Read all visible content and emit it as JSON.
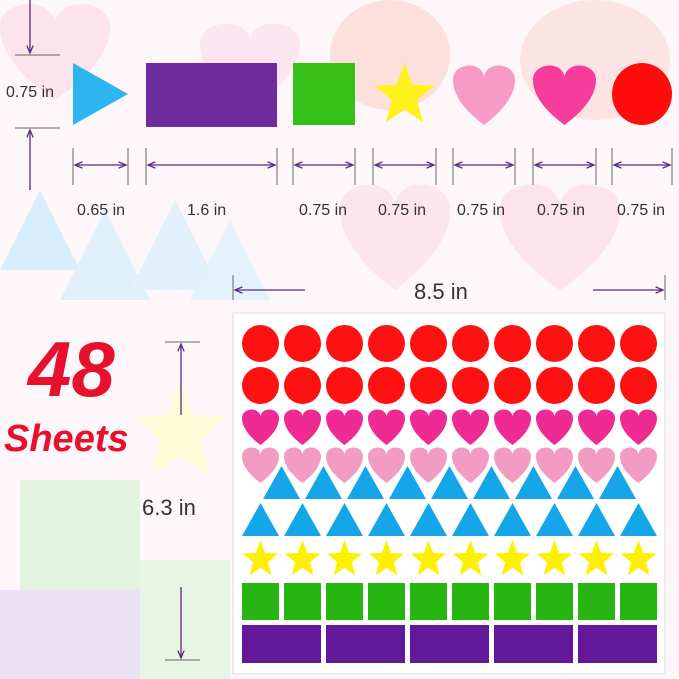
{
  "colors": {
    "red": "#ff1111",
    "hot_pink": "#ef2a92",
    "light_pink": "#f39cc3",
    "blue": "#14a6e8",
    "yellow": "#fff000",
    "green": "#27b511",
    "purple": "#63189a",
    "accent_text": "#e8112d",
    "arrow": "#5a2a80"
  },
  "samples": [
    {
      "shape": "triangle",
      "color": "#2cb5ef",
      "width_label": "0.65 in"
    },
    {
      "shape": "rectangle",
      "color": "#6e2c9c",
      "width_label": "1.6 in"
    },
    {
      "shape": "square",
      "color": "#36c018",
      "width_label": "0.75 in"
    },
    {
      "shape": "star",
      "color": "#fff21a",
      "width_label": "0.75 in"
    },
    {
      "shape": "heart",
      "color": "#f79ac6",
      "width_label": "0.75 in"
    },
    {
      "shape": "heart",
      "color": "#f73d9b",
      "width_label": "0.75 in"
    },
    {
      "shape": "circle",
      "color": "#ff0d0d",
      "width_label": "0.75 in"
    }
  ],
  "height_label": "0.75 in",
  "sheet_width_label": "8.5 in",
  "sheet_height_label": "6.3 in",
  "sheet_count": "48",
  "sheet_word": "Sheets",
  "sheet_rows": [
    {
      "shape": "circle",
      "color": "#ff1111",
      "count": 10
    },
    {
      "shape": "circle",
      "color": "#ff1111",
      "count": 10
    },
    {
      "shape": "heart",
      "color": "#ef2a92",
      "count": 10
    },
    {
      "shape": "heart",
      "color": "#f39cc3",
      "count": 10
    },
    {
      "shape": "triangle",
      "color": "#14a6e8",
      "count": 9
    },
    {
      "shape": "triangle",
      "color": "#14a6e8",
      "count": 10
    },
    {
      "shape": "star",
      "color": "#fff000",
      "count": 10
    },
    {
      "shape": "square",
      "color": "#27b511",
      "count": 10
    },
    {
      "shape": "rectangle",
      "color": "#63189a",
      "count": 5
    }
  ]
}
